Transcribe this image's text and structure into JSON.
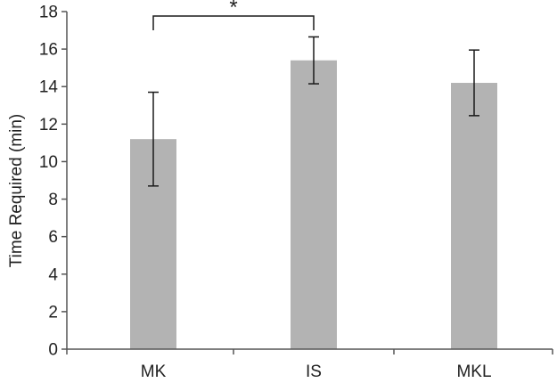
{
  "chart_data": {
    "type": "bar",
    "title": "",
    "xlabel": "",
    "ylabel": "Time Required (min)",
    "categories": [
      "MK",
      "IS",
      "MKL"
    ],
    "series": [
      {
        "values": [
          11.2,
          15.4,
          14.2
        ],
        "error": [
          2.5,
          1.25,
          1.75
        ],
        "color": "#b3b3b3"
      }
    ],
    "ylim": [
      0,
      18
    ],
    "yticks": [
      0,
      2,
      4,
      6,
      8,
      10,
      12,
      14,
      16,
      18
    ],
    "grid": false,
    "legend": "none",
    "significance": [
      {
        "from": "MK",
        "to": "IS",
        "label": "*"
      }
    ]
  }
}
